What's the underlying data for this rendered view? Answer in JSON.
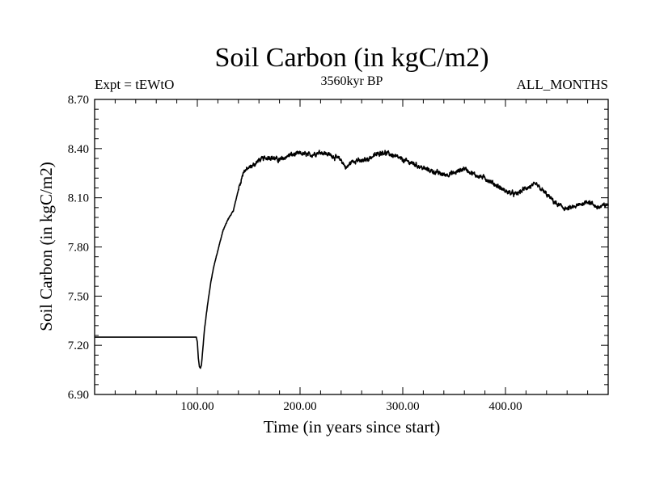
{
  "chart_data": {
    "type": "line",
    "title": "Soil Carbon (in kgC/m2)",
    "subtitle_left": "Expt = tEWtO",
    "subtitle_center": "3560kyr BP",
    "subtitle_right": "ALL_MONTHS",
    "xlabel": "Time (in years since start)",
    "ylabel": "Soil Carbon (in kgC/m2)",
    "xlim": [
      0,
      500
    ],
    "ylim": [
      6.9,
      8.7
    ],
    "xticks": [
      100,
      200,
      300,
      400
    ],
    "xtick_labels": [
      "100.00",
      "200.00",
      "300.00",
      "400.00"
    ],
    "yticks": [
      6.9,
      7.2,
      7.5,
      7.8,
      8.1,
      8.4,
      8.7
    ],
    "ytick_labels": [
      "6.90",
      "7.20",
      "7.50",
      "7.80",
      "8.10",
      "8.40",
      "8.70"
    ],
    "series": [
      {
        "name": "Soil Carbon",
        "color": "#000000",
        "x": [
          0,
          99,
          100,
          101,
          102,
          103,
          104,
          105,
          107,
          110,
          113,
          116,
          120,
          125,
          130,
          135,
          140,
          145,
          150,
          155,
          160,
          170,
          180,
          190,
          200,
          210,
          220,
          230,
          240,
          245,
          250,
          255,
          260,
          270,
          280,
          290,
          300,
          310,
          320,
          330,
          340,
          350,
          360,
          370,
          380,
          390,
          400,
          410,
          420,
          430,
          440,
          450,
          460,
          470,
          480,
          490,
          500
        ],
        "values": [
          7.25,
          7.25,
          7.22,
          7.12,
          7.07,
          7.06,
          7.08,
          7.15,
          7.3,
          7.45,
          7.58,
          7.68,
          7.78,
          7.9,
          7.97,
          8.02,
          8.15,
          8.26,
          8.28,
          8.3,
          8.33,
          8.35,
          8.33,
          8.36,
          8.37,
          8.36,
          8.38,
          8.36,
          8.33,
          8.28,
          8.32,
          8.33,
          8.32,
          8.35,
          8.38,
          8.36,
          8.33,
          8.31,
          8.28,
          8.26,
          8.24,
          8.25,
          8.28,
          8.24,
          8.22,
          8.18,
          8.14,
          8.12,
          8.16,
          8.18,
          8.12,
          8.06,
          8.03,
          8.05,
          8.08,
          8.04,
          8.06
        ]
      }
    ]
  }
}
